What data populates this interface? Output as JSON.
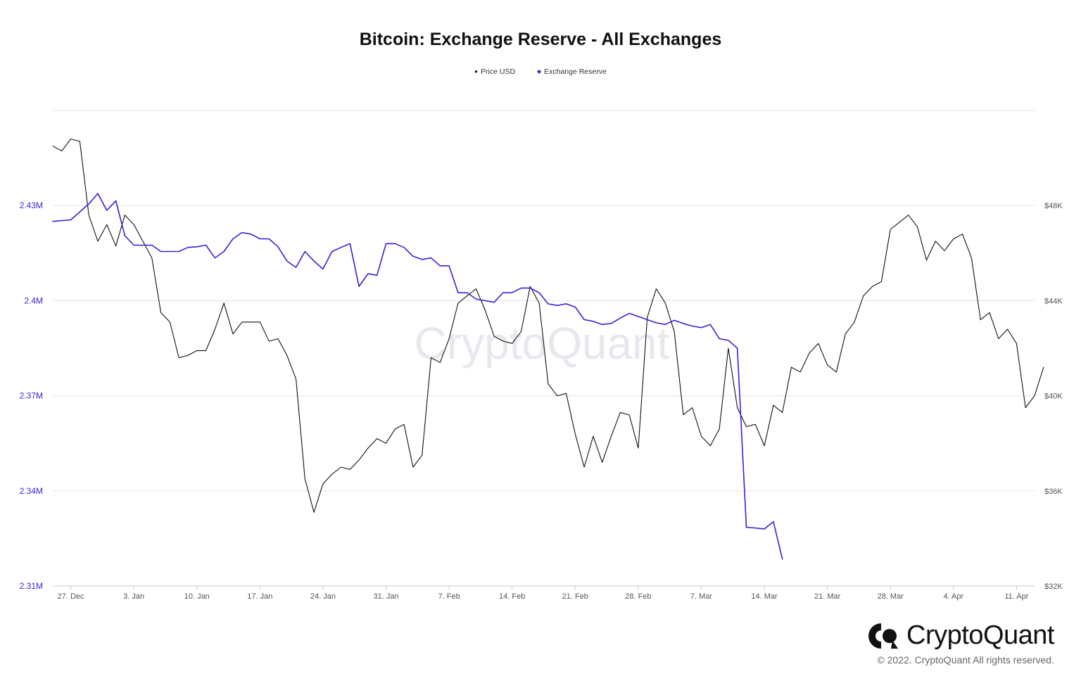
{
  "chart_data": {
    "type": "line",
    "title": "Bitcoin: Exchange Reserve - All Exchanges",
    "watermark": "CryptoQuant",
    "x_tick_labels": [
      "27. Dec",
      "3. Jan",
      "10. Jan",
      "17. Jan",
      "24. Jan",
      "31. Jan",
      "7. Feb",
      "14. Feb",
      "21. Feb",
      "28. Feb",
      "7. Mar",
      "14. Mar",
      "21. Mar",
      "28. Mar",
      "4. Apr",
      "11. Apr"
    ],
    "x_range": [
      "2021-12-25",
      "2022-04-13"
    ],
    "left_axis": {
      "ticks": [
        "2.31M",
        "2.34M",
        "2.37M",
        "2.4M",
        "2.43M"
      ],
      "ylim": [
        2310000,
        2460000
      ],
      "color": "#3b1fd6"
    },
    "right_axis": {
      "ticks": [
        "$32K",
        "$36K",
        "$40K",
        "$44K",
        "$48K"
      ],
      "ylim": [
        32000,
        52000
      ]
    },
    "grid": true,
    "legend_position": "top-center",
    "series": [
      {
        "name": "Price USD",
        "axis": "right",
        "color": "#111111",
        "marker": "●",
        "points": [
          [
            "2021-12-25",
            50500
          ],
          [
            "2021-12-26",
            50300
          ],
          [
            "2021-12-27",
            50800
          ],
          [
            "2021-12-28",
            50700
          ],
          [
            "2021-12-29",
            47600
          ],
          [
            "2021-12-30",
            46500
          ],
          [
            "2021-12-31",
            47200
          ],
          [
            "2022-01-01",
            46300
          ],
          [
            "2022-01-02",
            47600
          ],
          [
            "2022-01-03",
            47200
          ],
          [
            "2022-01-04",
            46500
          ],
          [
            "2022-01-05",
            45800
          ],
          [
            "2022-01-06",
            43500
          ],
          [
            "2022-01-07",
            43100
          ],
          [
            "2022-01-08",
            41600
          ],
          [
            "2022-01-09",
            41700
          ],
          [
            "2022-01-10",
            41900
          ],
          [
            "2022-01-11",
            41900
          ],
          [
            "2022-01-12",
            42800
          ],
          [
            "2022-01-13",
            43900
          ],
          [
            "2022-01-14",
            42600
          ],
          [
            "2022-01-15",
            43100
          ],
          [
            "2022-01-16",
            43100
          ],
          [
            "2022-01-17",
            43100
          ],
          [
            "2022-01-18",
            42300
          ],
          [
            "2022-01-19",
            42400
          ],
          [
            "2022-01-20",
            41700
          ],
          [
            "2022-01-21",
            40700
          ],
          [
            "2022-01-22",
            36500
          ],
          [
            "2022-01-23",
            35100
          ],
          [
            "2022-01-24",
            36300
          ],
          [
            "2022-01-25",
            36700
          ],
          [
            "2022-01-26",
            37000
          ],
          [
            "2022-01-27",
            36900
          ],
          [
            "2022-01-28",
            37300
          ],
          [
            "2022-01-29",
            37800
          ],
          [
            "2022-01-30",
            38200
          ],
          [
            "2022-01-31",
            38000
          ],
          [
            "2022-02-01",
            38600
          ],
          [
            "2022-02-02",
            38800
          ],
          [
            "2022-02-03",
            37000
          ],
          [
            "2022-02-04",
            37500
          ],
          [
            "2022-02-05",
            41600
          ],
          [
            "2022-02-06",
            41400
          ],
          [
            "2022-02-07",
            42400
          ],
          [
            "2022-02-08",
            43900
          ],
          [
            "2022-02-09",
            44200
          ],
          [
            "2022-02-10",
            44500
          ],
          [
            "2022-02-11",
            43600
          ],
          [
            "2022-02-12",
            42500
          ],
          [
            "2022-02-13",
            42300
          ],
          [
            "2022-02-14",
            42200
          ],
          [
            "2022-02-15",
            42700
          ],
          [
            "2022-02-16",
            44600
          ],
          [
            "2022-02-17",
            43900
          ],
          [
            "2022-02-18",
            40500
          ],
          [
            "2022-02-19",
            40000
          ],
          [
            "2022-02-20",
            40100
          ],
          [
            "2022-02-21",
            38400
          ],
          [
            "2022-02-22",
            37000
          ],
          [
            "2022-02-23",
            38300
          ],
          [
            "2022-02-24",
            37200
          ],
          [
            "2022-02-25",
            38300
          ],
          [
            "2022-02-26",
            39300
          ],
          [
            "2022-02-27",
            39200
          ],
          [
            "2022-02-28",
            37800
          ],
          [
            "2022-03-01",
            43300
          ],
          [
            "2022-03-02",
            44500
          ],
          [
            "2022-03-03",
            43900
          ],
          [
            "2022-03-04",
            42700
          ],
          [
            "2022-03-05",
            39200
          ],
          [
            "2022-03-06",
            39500
          ],
          [
            "2022-03-07",
            38300
          ],
          [
            "2022-03-08",
            37900
          ],
          [
            "2022-03-09",
            38600
          ],
          [
            "2022-03-10",
            42000
          ],
          [
            "2022-03-11",
            39500
          ],
          [
            "2022-03-12",
            38700
          ],
          [
            "2022-03-13",
            38800
          ],
          [
            "2022-03-14",
            37900
          ],
          [
            "2022-03-15",
            39600
          ],
          [
            "2022-03-16",
            39300
          ],
          [
            "2022-03-17",
            41200
          ],
          [
            "2022-03-18",
            41000
          ],
          [
            "2022-03-19",
            41800
          ],
          [
            "2022-03-20",
            42200
          ],
          [
            "2022-03-21",
            41300
          ],
          [
            "2022-03-22",
            41000
          ],
          [
            "2022-03-23",
            42600
          ],
          [
            "2022-03-24",
            43100
          ],
          [
            "2022-03-25",
            44200
          ],
          [
            "2022-03-26",
            44600
          ],
          [
            "2022-03-27",
            44800
          ],
          [
            "2022-03-28",
            47000
          ],
          [
            "2022-03-29",
            47300
          ],
          [
            "2022-03-30",
            47600
          ],
          [
            "2022-03-31",
            47100
          ],
          [
            "2022-04-01",
            45700
          ],
          [
            "2022-04-02",
            46500
          ],
          [
            "2022-04-03",
            46100
          ],
          [
            "2022-04-04",
            46600
          ],
          [
            "2022-04-05",
            46800
          ],
          [
            "2022-04-06",
            45800
          ],
          [
            "2022-04-07",
            43200
          ],
          [
            "2022-04-08",
            43500
          ],
          [
            "2022-04-09",
            42400
          ],
          [
            "2022-04-10",
            42800
          ],
          [
            "2022-04-11",
            42200
          ],
          [
            "2022-04-12",
            39500
          ],
          [
            "2022-04-13",
            40000
          ],
          [
            "2022-04-14",
            41200
          ]
        ]
      },
      {
        "name": "Exchange Reserve",
        "axis": "left",
        "color": "#3b1fd6",
        "marker": "◆",
        "points": [
          [
            "2021-12-25",
            2425000
          ],
          [
            "2021-12-27",
            2425500
          ],
          [
            "2021-12-29",
            2430500
          ],
          [
            "2021-12-30",
            2433800
          ],
          [
            "2021-12-31",
            2428500
          ],
          [
            "2022-01-01",
            2431500
          ],
          [
            "2022-01-02",
            2420500
          ],
          [
            "2022-01-03",
            2417500
          ],
          [
            "2022-01-04",
            2417500
          ],
          [
            "2022-01-05",
            2417500
          ],
          [
            "2022-01-06",
            2415500
          ],
          [
            "2022-01-07",
            2415500
          ],
          [
            "2022-01-08",
            2415500
          ],
          [
            "2022-01-09",
            2416800
          ],
          [
            "2022-01-10",
            2417000
          ],
          [
            "2022-01-11",
            2417500
          ],
          [
            "2022-01-12",
            2413500
          ],
          [
            "2022-01-13",
            2415500
          ],
          [
            "2022-01-14",
            2419500
          ],
          [
            "2022-01-15",
            2421500
          ],
          [
            "2022-01-16",
            2421000
          ],
          [
            "2022-01-17",
            2419500
          ],
          [
            "2022-01-18",
            2419500
          ],
          [
            "2022-01-19",
            2417000
          ],
          [
            "2022-01-20",
            2412500
          ],
          [
            "2022-01-21",
            2410500
          ],
          [
            "2022-01-22",
            2415500
          ],
          [
            "2022-01-23",
            2412500
          ],
          [
            "2022-01-24",
            2410000
          ],
          [
            "2022-01-25",
            2415500
          ],
          [
            "2022-01-26",
            2416800
          ],
          [
            "2022-01-27",
            2418000
          ],
          [
            "2022-01-28",
            2404500
          ],
          [
            "2022-01-29",
            2408500
          ],
          [
            "2022-01-30",
            2408000
          ],
          [
            "2022-01-31",
            2418000
          ],
          [
            "2022-02-01",
            2418000
          ],
          [
            "2022-02-02",
            2416800
          ],
          [
            "2022-02-03",
            2414000
          ],
          [
            "2022-02-04",
            2413000
          ],
          [
            "2022-02-05",
            2413500
          ],
          [
            "2022-02-06",
            2411000
          ],
          [
            "2022-02-07",
            2411000
          ],
          [
            "2022-02-08",
            2402500
          ],
          [
            "2022-02-09",
            2402500
          ],
          [
            "2022-02-10",
            2400500
          ],
          [
            "2022-02-11",
            2400000
          ],
          [
            "2022-02-12",
            2399500
          ],
          [
            "2022-02-13",
            2402500
          ],
          [
            "2022-02-14",
            2402500
          ],
          [
            "2022-02-15",
            2404000
          ],
          [
            "2022-02-16",
            2404000
          ],
          [
            "2022-02-17",
            2402500
          ],
          [
            "2022-02-18",
            2399000
          ],
          [
            "2022-02-19",
            2398500
          ],
          [
            "2022-02-20",
            2399000
          ],
          [
            "2022-02-21",
            2398000
          ],
          [
            "2022-02-22",
            2394000
          ],
          [
            "2022-02-23",
            2393500
          ],
          [
            "2022-02-24",
            2392500
          ],
          [
            "2022-02-25",
            2392800
          ],
          [
            "2022-02-26",
            2394500
          ],
          [
            "2022-02-27",
            2396000
          ],
          [
            "2022-02-28",
            2395000
          ],
          [
            "2022-03-01",
            2394000
          ],
          [
            "2022-03-02",
            2393000
          ],
          [
            "2022-03-03",
            2392500
          ],
          [
            "2022-03-04",
            2393800
          ],
          [
            "2022-03-05",
            2392800
          ],
          [
            "2022-03-06",
            2392000
          ],
          [
            "2022-03-07",
            2391500
          ],
          [
            "2022-03-08",
            2392500
          ],
          [
            "2022-03-09",
            2388000
          ],
          [
            "2022-03-10",
            2387500
          ],
          [
            "2022-03-11",
            2385000
          ],
          [
            "2022-03-12",
            2328500
          ],
          [
            "2022-03-13",
            2328300
          ],
          [
            "2022-03-14",
            2328000
          ],
          [
            "2022-03-15",
            2330300
          ],
          [
            "2022-03-16",
            2318500
          ]
        ]
      }
    ]
  },
  "branding": {
    "logo_name": "CryptoQuant",
    "copyright": "© 2022. CryptoQuant All rights reserved."
  }
}
